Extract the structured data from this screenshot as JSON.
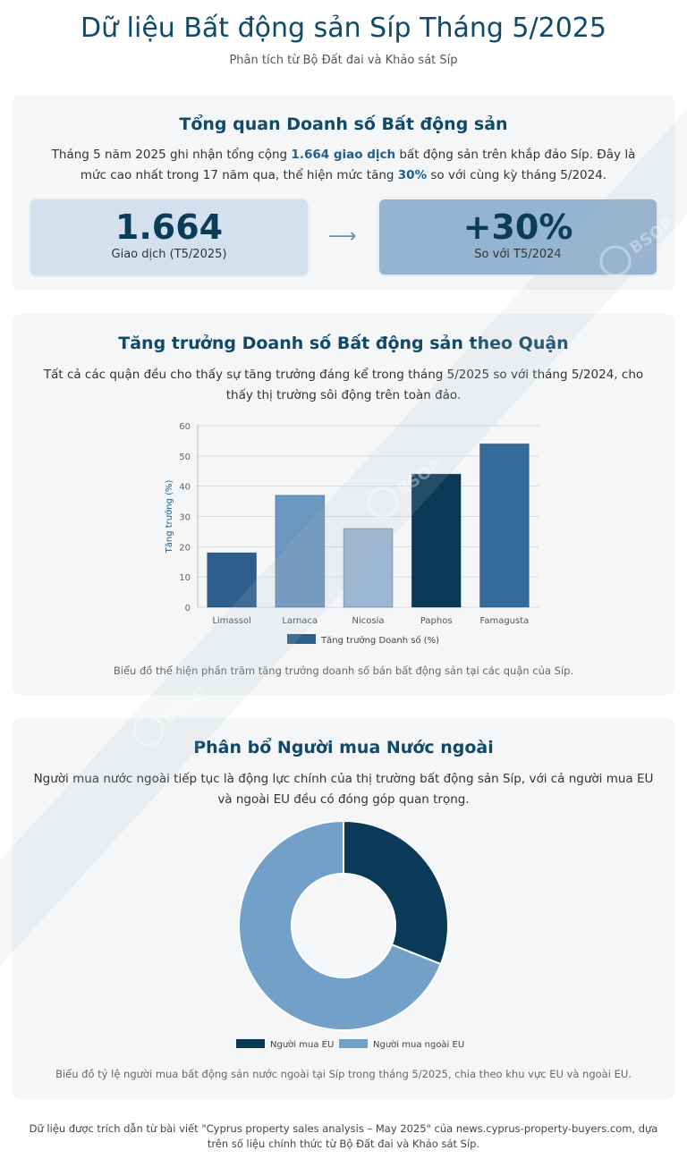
{
  "header": {
    "title": "Dữ liệu Bất động sản Síp Tháng 5/2025",
    "subtitle": "Phân tích từ Bộ Đất đai và Khảo sát Síp"
  },
  "overview": {
    "heading": "Tổng quan Doanh số Bất động sản",
    "desc_part1": "Tháng 5 năm 2025 ghi nhận tổng cộng ",
    "desc_bold1": "1.664 giao dịch",
    "desc_part2": " bất động sản trên khắp đảo Síp. Đây là mức cao nhất trong 17 năm qua, thể hiện mức tăng ",
    "desc_bold2": "30%",
    "desc_part3": " so với cùng kỳ tháng 5/2024.",
    "stat1_value": "1.664",
    "stat1_label": "Giao dịch (T5/2025)",
    "stat2_value": "+30%",
    "stat2_label": "So với T5/2024",
    "colors": {
      "stat1_bg": "#d3e1ef",
      "stat2_bg": "#94b4d1"
    }
  },
  "district": {
    "heading": "Tăng trưởng Doanh số Bất động sản theo Quận",
    "desc": "Tất cả các quận đều cho thấy sự tăng trưởng đáng kể trong tháng 5/2025 so với tháng 5/2024, cho thấy thị trường sôi động trên toàn đảo.",
    "caption": "Biểu đồ thể hiện phần trăm tăng trưởng doanh số bán bất động sản tại các quận của Síp."
  },
  "buyers": {
    "heading": "Phân bổ Người mua Nước ngoài",
    "desc": "Người mua nước ngoài tiếp tục là động lực chính của thị trường bất động sản Síp, với cả người mua EU và ngoài EU đều có đóng góp quan trọng.",
    "caption": "Biểu đồ tỷ lệ người mua bất động sản nước ngoài tại Síp trong tháng 5/2025, chia theo khu vực EU và ngoài EU."
  },
  "footer": {
    "text": "Dữ liệu được trích dẫn từ bài viết \"Cyprus property sales analysis – May 2025\" của news.cyprus-property-buyers.com, dựa trên số liệu chính thức từ Bộ Đất đai và Khảo sát Síp."
  },
  "watermark": {
    "text": "BSOP"
  },
  "chart_data": [
    {
      "type": "bar",
      "categories": [
        "Limassol",
        "Larnaca",
        "Nicosia",
        "Paphos",
        "Famagusta"
      ],
      "series": [
        {
          "name": "Tăng trưởng Doanh số (%)",
          "values": [
            18,
            37,
            26,
            44,
            54
          ]
        }
      ],
      "bar_colors": [
        "#2e5f8c",
        "#6a97bf",
        "#9ab6d2",
        "#0b3a58",
        "#356b9b"
      ],
      "legend_color": "#2e5f8c",
      "title": "",
      "xlabel": "",
      "ylabel": "Tăng trưởng (%)",
      "ylim": [
        0,
        60
      ],
      "yticks": [
        0,
        10,
        20,
        30,
        40,
        50,
        60
      ],
      "grid": true,
      "legend": "bottom"
    },
    {
      "type": "pie",
      "donut": true,
      "labels": [
        "Người mua EU",
        "Người mua ngoài EU"
      ],
      "values": [
        31,
        69
      ],
      "colors": [
        "#0b3a58",
        "#72a0c8"
      ],
      "legend": "bottom"
    }
  ]
}
